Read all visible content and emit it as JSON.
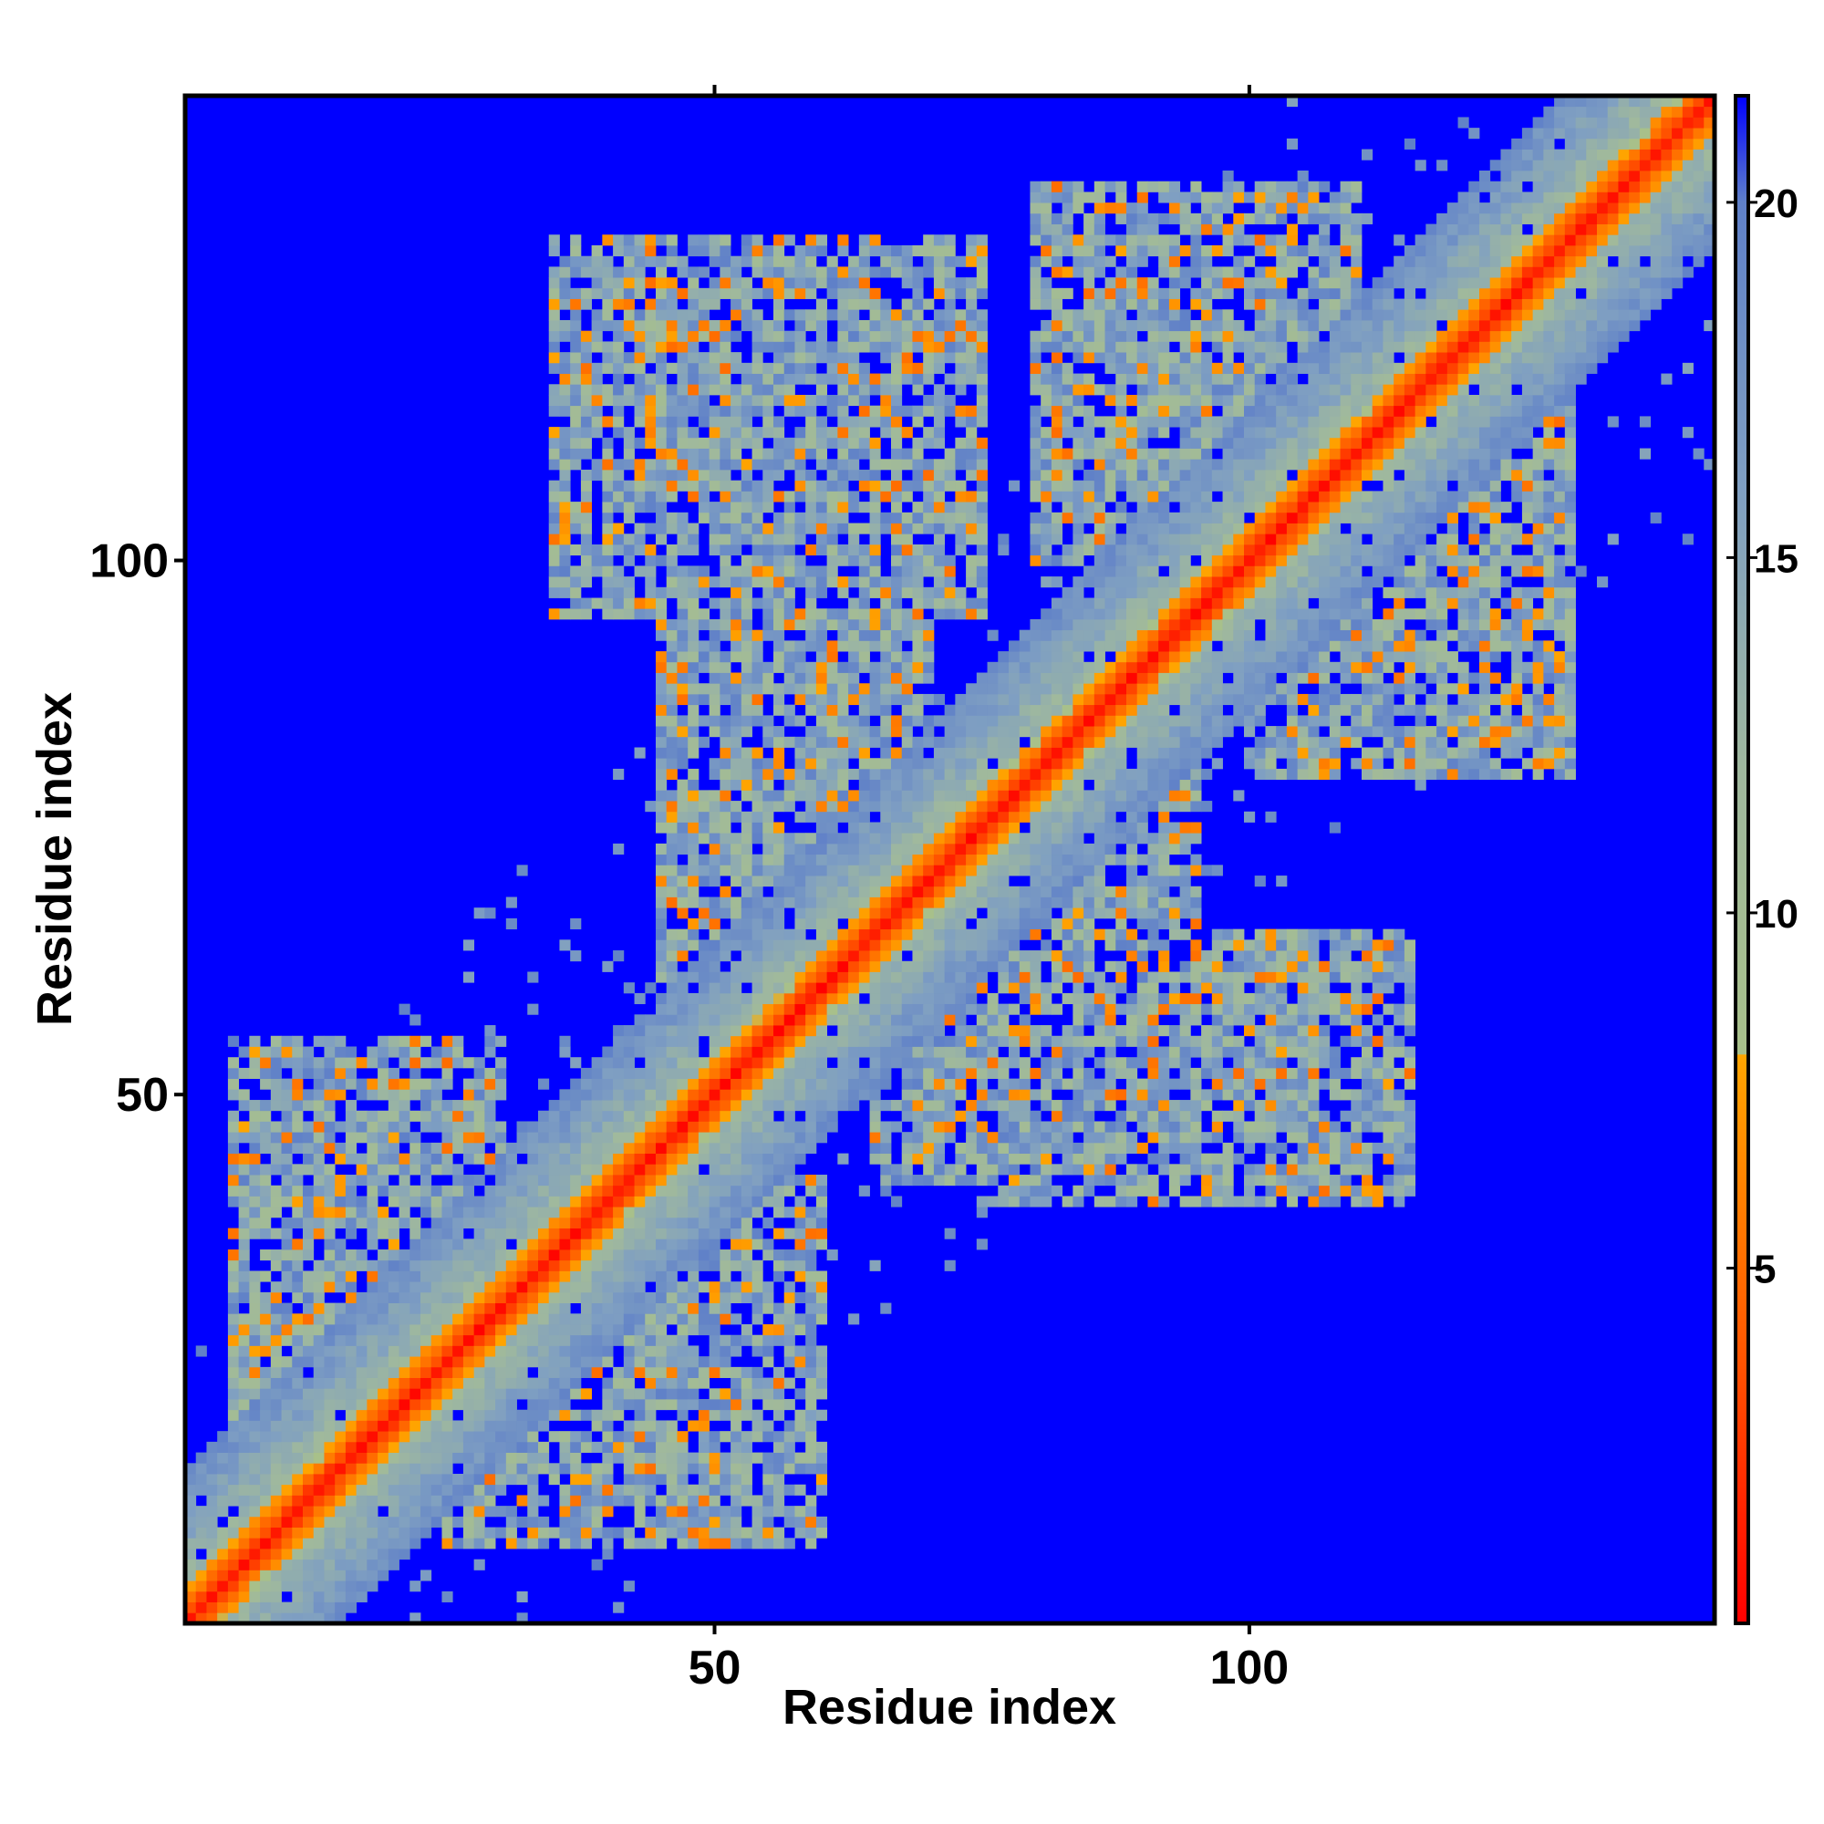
{
  "chart_data": {
    "type": "heatmap",
    "title": "",
    "xlabel": "Residue index",
    "ylabel": "Residue index",
    "xlim": [
      1,
      143
    ],
    "ylim": [
      1,
      143
    ],
    "n_residues": 143,
    "x_ticks": [
      50,
      100
    ],
    "y_ticks": [
      50,
      100
    ],
    "x_tick_labels": [
      "50",
      "100"
    ],
    "y_tick_labels": [
      "50",
      "100"
    ],
    "colorbar": {
      "range": [
        0,
        21.5
      ],
      "ticks": [
        5,
        10,
        15,
        20
      ],
      "tick_labels": [
        "5",
        "10",
        "15",
        "20"
      ],
      "stops": [
        {
          "value": 0,
          "color": "#ff0000"
        },
        {
          "value": 4,
          "color": "#ff5a00"
        },
        {
          "value": 8,
          "color": "#ffa500"
        },
        {
          "value": 8.01,
          "color": "#a8c08a"
        },
        {
          "value": 12,
          "color": "#9fb89e"
        },
        {
          "value": 16,
          "color": "#7f9fc2"
        },
        {
          "value": 20,
          "color": "#5f80c8"
        },
        {
          "value": 21.5,
          "color": "#0000ff"
        }
      ]
    },
    "background_color": "#0000ff",
    "contact_regions": [
      {
        "x": [
          5,
          30
        ],
        "y": [
          20,
          55
        ]
      },
      {
        "x": [
          25,
          60
        ],
        "y": [
          8,
          42
        ]
      },
      {
        "x": [
          45,
          70
        ],
        "y": [
          60,
          95
        ]
      },
      {
        "x": [
          65,
          95
        ],
        "y": [
          42,
          80
        ]
      },
      {
        "x": [
          80,
          110
        ],
        "y": [
          100,
          135
        ]
      },
      {
        "x": [
          100,
          130
        ],
        "y": [
          80,
          115
        ]
      },
      {
        "x": [
          35,
          75
        ],
        "y": [
          95,
          130
        ]
      },
      {
        "x": [
          75,
          115
        ],
        "y": [
          40,
          65
        ]
      }
    ],
    "diagonal_band_width": 3,
    "grid": false,
    "legend": "colorbar-right"
  }
}
